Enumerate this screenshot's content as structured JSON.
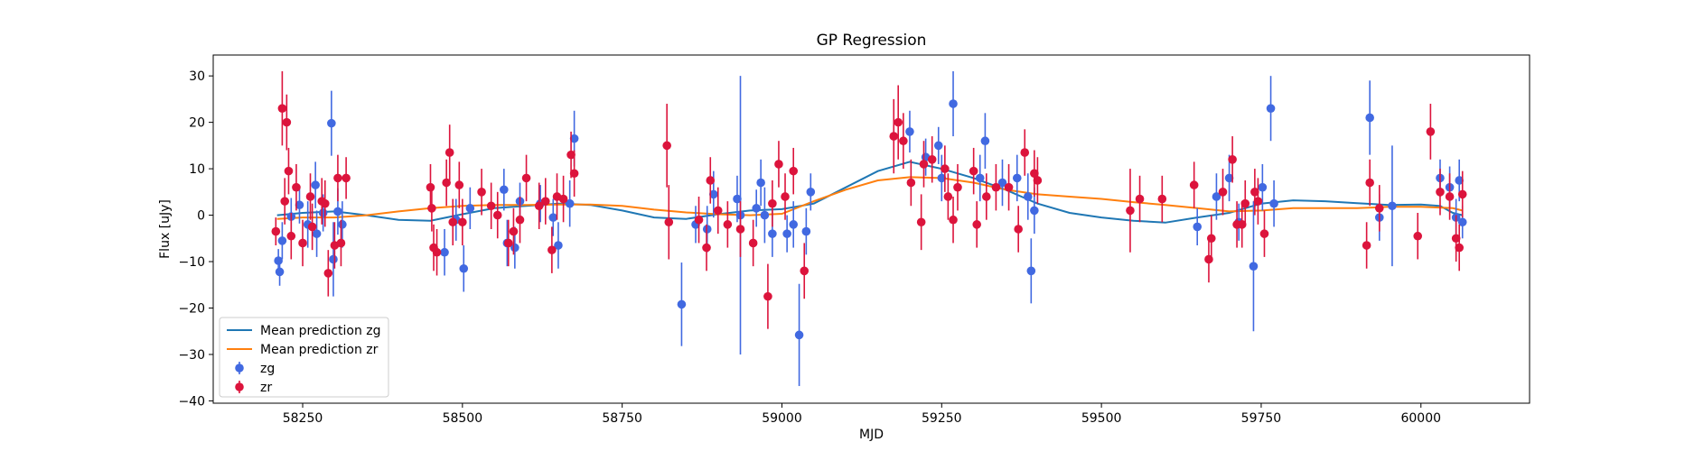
{
  "chart_data": {
    "type": "scatter",
    "title": "GP Regression",
    "xlabel": "MJD",
    "ylabel": "Flux [uJy]",
    "xlim": [
      58110,
      60170
    ],
    "ylim": [
      -40.5,
      34.5
    ],
    "xticks": [
      58250,
      58500,
      58750,
      59000,
      59250,
      59500,
      59750,
      60000
    ],
    "yticks": [
      -40,
      -30,
      -20,
      -10,
      0,
      10,
      20,
      30
    ],
    "legend_position": "lower-left",
    "legend": [
      "Mean prediction zg",
      "Mean prediction zr",
      "zg",
      "zr"
    ],
    "colors": {
      "zg_line": "#1f77b4",
      "zr_line": "#ff7f0e",
      "zg_points": "#4169e1",
      "zr_points": "#dc143c"
    },
    "series": [
      {
        "name": "Mean prediction zg",
        "kind": "line",
        "points": [
          [
            58210,
            0.0
          ],
          [
            58250,
            0.5
          ],
          [
            58300,
            0.8
          ],
          [
            58350,
            0.0
          ],
          [
            58400,
            -1.0
          ],
          [
            58450,
            -1.2
          ],
          [
            58500,
            0.2
          ],
          [
            58550,
            1.5
          ],
          [
            58600,
            2.0
          ],
          [
            58650,
            2.5
          ],
          [
            58700,
            2.2
          ],
          [
            58750,
            1.0
          ],
          [
            58800,
            -0.5
          ],
          [
            58850,
            -0.8
          ],
          [
            58900,
            0.2
          ],
          [
            58950,
            1.0
          ],
          [
            59000,
            1.3
          ],
          [
            59050,
            2.5
          ],
          [
            59100,
            6.0
          ],
          [
            59150,
            9.5
          ],
          [
            59200,
            11.5
          ],
          [
            59250,
            10.0
          ],
          [
            59300,
            8.0
          ],
          [
            59350,
            5.5
          ],
          [
            59400,
            2.5
          ],
          [
            59450,
            0.5
          ],
          [
            59500,
            -0.5
          ],
          [
            59550,
            -1.2
          ],
          [
            59600,
            -1.6
          ],
          [
            59650,
            -0.5
          ],
          [
            59700,
            0.5
          ],
          [
            59750,
            2.5
          ],
          [
            59800,
            3.2
          ],
          [
            59850,
            3.0
          ],
          [
            59900,
            2.6
          ],
          [
            59950,
            2.2
          ],
          [
            60000,
            2.3
          ],
          [
            60030,
            2.0
          ],
          [
            60050,
            0.5
          ],
          [
            60065,
            0.0
          ]
        ]
      },
      {
        "name": "Mean prediction zr",
        "kind": "line",
        "points": [
          [
            58210,
            -0.8
          ],
          [
            58250,
            -0.5
          ],
          [
            58300,
            -0.5
          ],
          [
            58350,
            0.0
          ],
          [
            58400,
            0.8
          ],
          [
            58450,
            1.5
          ],
          [
            58500,
            2.0
          ],
          [
            58550,
            2.2
          ],
          [
            58600,
            2.2
          ],
          [
            58650,
            2.3
          ],
          [
            58700,
            2.3
          ],
          [
            58750,
            2.0
          ],
          [
            58800,
            1.2
          ],
          [
            58850,
            0.6
          ],
          [
            58900,
            0.2
          ],
          [
            58950,
            0.0
          ],
          [
            59000,
            0.3
          ],
          [
            59050,
            3.0
          ],
          [
            59100,
            5.5
          ],
          [
            59150,
            7.5
          ],
          [
            59200,
            8.2
          ],
          [
            59250,
            8.0
          ],
          [
            59300,
            7.0
          ],
          [
            59350,
            5.5
          ],
          [
            59400,
            4.5
          ],
          [
            59450,
            4.0
          ],
          [
            59500,
            3.5
          ],
          [
            59550,
            2.8
          ],
          [
            59600,
            2.2
          ],
          [
            59650,
            1.5
          ],
          [
            59700,
            0.8
          ],
          [
            59750,
            1.0
          ],
          [
            59800,
            1.5
          ],
          [
            59850,
            1.5
          ],
          [
            59900,
            1.5
          ],
          [
            59950,
            1.8
          ],
          [
            60000,
            1.8
          ],
          [
            60050,
            1.5
          ],
          [
            60065,
            1.0
          ]
        ]
      },
      {
        "name": "zg",
        "kind": "errorbar",
        "points": [
          [
            58212,
            -9.8,
            2.5
          ],
          [
            58214,
            -12.2,
            3.0
          ],
          [
            58218,
            -5.5,
            4.0
          ],
          [
            58232,
            -0.3,
            4.0
          ],
          [
            58245,
            2.2,
            4.0
          ],
          [
            58258,
            -2.0,
            5.0
          ],
          [
            58270,
            6.5,
            5.0
          ],
          [
            58272,
            -4.0,
            5.0
          ],
          [
            58282,
            0.5,
            4.0
          ],
          [
            58295,
            19.8,
            7.0
          ],
          [
            58298,
            -9.5,
            8.0
          ],
          [
            58305,
            0.8,
            5.0
          ],
          [
            58312,
            -2.0,
            5.0
          ],
          [
            58472,
            -8.0,
            5.0
          ],
          [
            58490,
            -1.0,
            4.5
          ],
          [
            58502,
            -11.5,
            5.0
          ],
          [
            58512,
            1.5,
            4.5
          ],
          [
            58565,
            5.5,
            4.5
          ],
          [
            58570,
            -6.0,
            5.0
          ],
          [
            58582,
            -7.0,
            4.5
          ],
          [
            58590,
            3.0,
            4.0
          ],
          [
            58622,
            2.5,
            4.0
          ],
          [
            58642,
            -0.5,
            4.0
          ],
          [
            58650,
            -6.5,
            5.0
          ],
          [
            58668,
            2.5,
            5.0
          ],
          [
            58675,
            16.5,
            6.0
          ],
          [
            58843,
            -19.2,
            9.0
          ],
          [
            58865,
            -2.0,
            4.0
          ],
          [
            58883,
            -3.0,
            5.0
          ],
          [
            58893,
            4.5,
            5.0
          ],
          [
            58930,
            3.5,
            5.0
          ],
          [
            58935,
            0.0,
            30.0
          ],
          [
            58960,
            1.5,
            4.0
          ],
          [
            58967,
            7.0,
            5.0
          ],
          [
            58973,
            0.0,
            6.0
          ],
          [
            58985,
            -4.0,
            5.0
          ],
          [
            59008,
            -4.0,
            4.0
          ],
          [
            59018,
            -2.0,
            5.0
          ],
          [
            59027,
            -25.8,
            11.0
          ],
          [
            59038,
            -3.5,
            5.0
          ],
          [
            59045,
            5.0,
            4.0
          ],
          [
            59200,
            18.0,
            4.5
          ],
          [
            59225,
            12.5,
            4.0
          ],
          [
            59245,
            15.0,
            4.0
          ],
          [
            59250,
            8.0,
            5.0
          ],
          [
            59268,
            24.0,
            7.0
          ],
          [
            59310,
            8.0,
            5.0
          ],
          [
            59318,
            16.0,
            6.0
          ],
          [
            59345,
            7.0,
            5.0
          ],
          [
            59368,
            8.0,
            5.0
          ],
          [
            59385,
            4.0,
            5.0
          ],
          [
            59390,
            -12.0,
            7.0
          ],
          [
            59395,
            1.0,
            5.0
          ],
          [
            59650,
            -2.5,
            4.0
          ],
          [
            59680,
            4.0,
            5.0
          ],
          [
            59700,
            8.0,
            5.0
          ],
          [
            59715,
            -1.5,
            4.0
          ],
          [
            59738,
            -11.0,
            14.0
          ],
          [
            59752,
            6.0,
            5.0
          ],
          [
            59765,
            23.0,
            7.0
          ],
          [
            59770,
            2.5,
            5.0
          ],
          [
            59920,
            21.0,
            8.0
          ],
          [
            59935,
            -0.5,
            5.0
          ],
          [
            59955,
            2.0,
            13.0
          ],
          [
            60030,
            8.0,
            4.0
          ],
          [
            60045,
            6.0,
            4.5
          ],
          [
            60055,
            -0.5,
            4.0
          ],
          [
            60060,
            7.5,
            4.5
          ],
          [
            60065,
            -1.5,
            3.5
          ]
        ]
      },
      {
        "name": "zr",
        "kind": "errorbar",
        "points": [
          [
            58208,
            -3.5,
            3.0
          ],
          [
            58218,
            23.0,
            8.0
          ],
          [
            58222,
            3.0,
            5.0
          ],
          [
            58225,
            20.0,
            6.0
          ],
          [
            58228,
            9.5,
            5.0
          ],
          [
            58232,
            -4.5,
            5.0
          ],
          [
            58240,
            6.0,
            5.0
          ],
          [
            58250,
            -6.0,
            5.0
          ],
          [
            58262,
            4.0,
            5.0
          ],
          [
            58265,
            -2.5,
            5.0
          ],
          [
            58280,
            3.0,
            5.0
          ],
          [
            58285,
            2.5,
            5.0
          ],
          [
            58290,
            -12.5,
            5.0
          ],
          [
            58300,
            -6.5,
            5.0
          ],
          [
            58305,
            8.0,
            5.0
          ],
          [
            58310,
            -6.0,
            5.0
          ],
          [
            58318,
            8.0,
            4.5
          ],
          [
            58450,
            6.0,
            5.0
          ],
          [
            58452,
            1.5,
            5.0
          ],
          [
            58455,
            -7.0,
            5.0
          ],
          [
            58460,
            -8.0,
            5.0
          ],
          [
            58475,
            7.0,
            5.0
          ],
          [
            58480,
            13.5,
            6.0
          ],
          [
            58485,
            -1.5,
            5.0
          ],
          [
            58495,
            6.5,
            5.0
          ],
          [
            58500,
            -1.5,
            5.0
          ],
          [
            58530,
            5.0,
            5.0
          ],
          [
            58545,
            2.0,
            5.0
          ],
          [
            58555,
            0.0,
            5.0
          ],
          [
            58572,
            -6.0,
            5.0
          ],
          [
            58580,
            -3.5,
            5.0
          ],
          [
            58590,
            -1.0,
            5.0
          ],
          [
            58600,
            8.0,
            5.0
          ],
          [
            58620,
            2.0,
            5.0
          ],
          [
            58630,
            3.0,
            5.0
          ],
          [
            58640,
            -7.5,
            5.0
          ],
          [
            58648,
            4.0,
            5.0
          ],
          [
            58658,
            3.5,
            5.0
          ],
          [
            58670,
            13.0,
            5.0
          ],
          [
            58675,
            9.0,
            5.0
          ],
          [
            58820,
            15.0,
            9.0
          ],
          [
            58823,
            -1.5,
            8.0
          ],
          [
            58870,
            -1.0,
            5.0
          ],
          [
            58882,
            -7.0,
            5.0
          ],
          [
            58888,
            7.5,
            5.0
          ],
          [
            58900,
            1.0,
            5.0
          ],
          [
            58915,
            -2.0,
            5.0
          ],
          [
            58935,
            -3.0,
            6.0
          ],
          [
            58955,
            -6.0,
            5.0
          ],
          [
            58978,
            -17.5,
            7.0
          ],
          [
            58985,
            2.5,
            5.0
          ],
          [
            58995,
            11.0,
            5.0
          ],
          [
            59005,
            4.0,
            5.0
          ],
          [
            59018,
            9.5,
            5.0
          ],
          [
            59035,
            -12.0,
            6.0
          ],
          [
            59175,
            17.0,
            8.0
          ],
          [
            59182,
            20.0,
            8.0
          ],
          [
            59190,
            16.0,
            6.0
          ],
          [
            59202,
            7.0,
            5.0
          ],
          [
            59218,
            -1.5,
            6.0
          ],
          [
            59222,
            11.0,
            5.0
          ],
          [
            59235,
            12.0,
            5.0
          ],
          [
            59255,
            10.0,
            5.0
          ],
          [
            59260,
            4.0,
            5.0
          ],
          [
            59268,
            -1.0,
            5.0
          ],
          [
            59275,
            6.0,
            5.0
          ],
          [
            59300,
            9.5,
            5.0
          ],
          [
            59305,
            -2.0,
            5.0
          ],
          [
            59320,
            4.0,
            5.0
          ],
          [
            59335,
            6.0,
            5.0
          ],
          [
            59355,
            6.0,
            5.0
          ],
          [
            59370,
            -3.0,
            5.0
          ],
          [
            59380,
            13.5,
            5.0
          ],
          [
            59395,
            9.0,
            5.0
          ],
          [
            59400,
            7.5,
            5.0
          ],
          [
            59545,
            1.0,
            9.0
          ],
          [
            59560,
            3.5,
            5.0
          ],
          [
            59595,
            3.5,
            5.0
          ],
          [
            59645,
            6.5,
            5.0
          ],
          [
            59668,
            -9.5,
            5.0
          ],
          [
            59672,
            -5.0,
            5.0
          ],
          [
            59690,
            5.0,
            5.0
          ],
          [
            59705,
            12.0,
            5.0
          ],
          [
            59712,
            -2.0,
            5.0
          ],
          [
            59720,
            -2.0,
            5.0
          ],
          [
            59725,
            2.5,
            5.0
          ],
          [
            59740,
            5.0,
            5.0
          ],
          [
            59745,
            3.0,
            5.0
          ],
          [
            59755,
            -4.0,
            5.0
          ],
          [
            59915,
            -6.5,
            5.0
          ],
          [
            59920,
            7.0,
            5.0
          ],
          [
            59935,
            1.5,
            5.0
          ],
          [
            59995,
            -4.5,
            5.0
          ],
          [
            60015,
            18.0,
            6.0
          ],
          [
            60030,
            5.0,
            5.0
          ],
          [
            60045,
            4.0,
            5.0
          ],
          [
            60055,
            -5.0,
            5.0
          ],
          [
            60060,
            -7.0,
            5.0
          ],
          [
            60065,
            4.5,
            5.0
          ]
        ]
      }
    ]
  }
}
